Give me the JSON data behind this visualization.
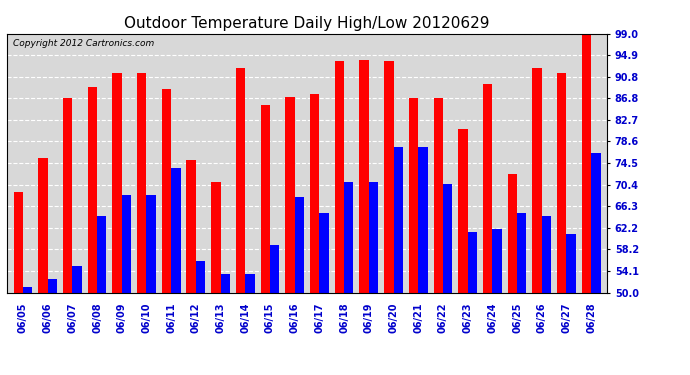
{
  "title": "Outdoor Temperature Daily High/Low 20120629",
  "copyright": "Copyright 2012 Cartronics.com",
  "dates": [
    "06/05",
    "06/06",
    "06/07",
    "06/08",
    "06/09",
    "06/10",
    "06/11",
    "06/12",
    "06/13",
    "06/14",
    "06/15",
    "06/16",
    "06/17",
    "06/18",
    "06/19",
    "06/20",
    "06/21",
    "06/22",
    "06/23",
    "06/24",
    "06/25",
    "06/26",
    "06/27",
    "06/28"
  ],
  "highs": [
    69.0,
    75.5,
    86.8,
    89.0,
    91.5,
    91.5,
    88.5,
    75.0,
    71.0,
    92.5,
    85.5,
    87.0,
    87.5,
    93.8,
    94.0,
    93.8,
    86.8,
    86.8,
    81.0,
    89.5,
    72.5,
    92.5,
    91.5,
    99.0
  ],
  "lows": [
    51.0,
    52.5,
    55.0,
    64.5,
    68.5,
    68.5,
    73.5,
    56.0,
    53.5,
    53.5,
    59.0,
    68.0,
    65.0,
    71.0,
    71.0,
    77.5,
    77.5,
    70.5,
    61.5,
    62.0,
    65.0,
    64.5,
    61.0,
    76.5
  ],
  "high_color": "#ff0000",
  "low_color": "#0000ff",
  "bg_color": "#ffffff",
  "plot_bg_color": "#d8d8d8",
  "grid_color": "#ffffff",
  "yticks": [
    50.0,
    54.1,
    58.2,
    62.2,
    66.3,
    70.4,
    74.5,
    78.6,
    82.7,
    86.8,
    90.8,
    94.9,
    99.0
  ],
  "ylim": [
    50.0,
    99.0
  ],
  "bar_width": 0.38,
  "title_fontsize": 11,
  "tick_fontsize": 7,
  "copyright_fontsize": 6.5
}
